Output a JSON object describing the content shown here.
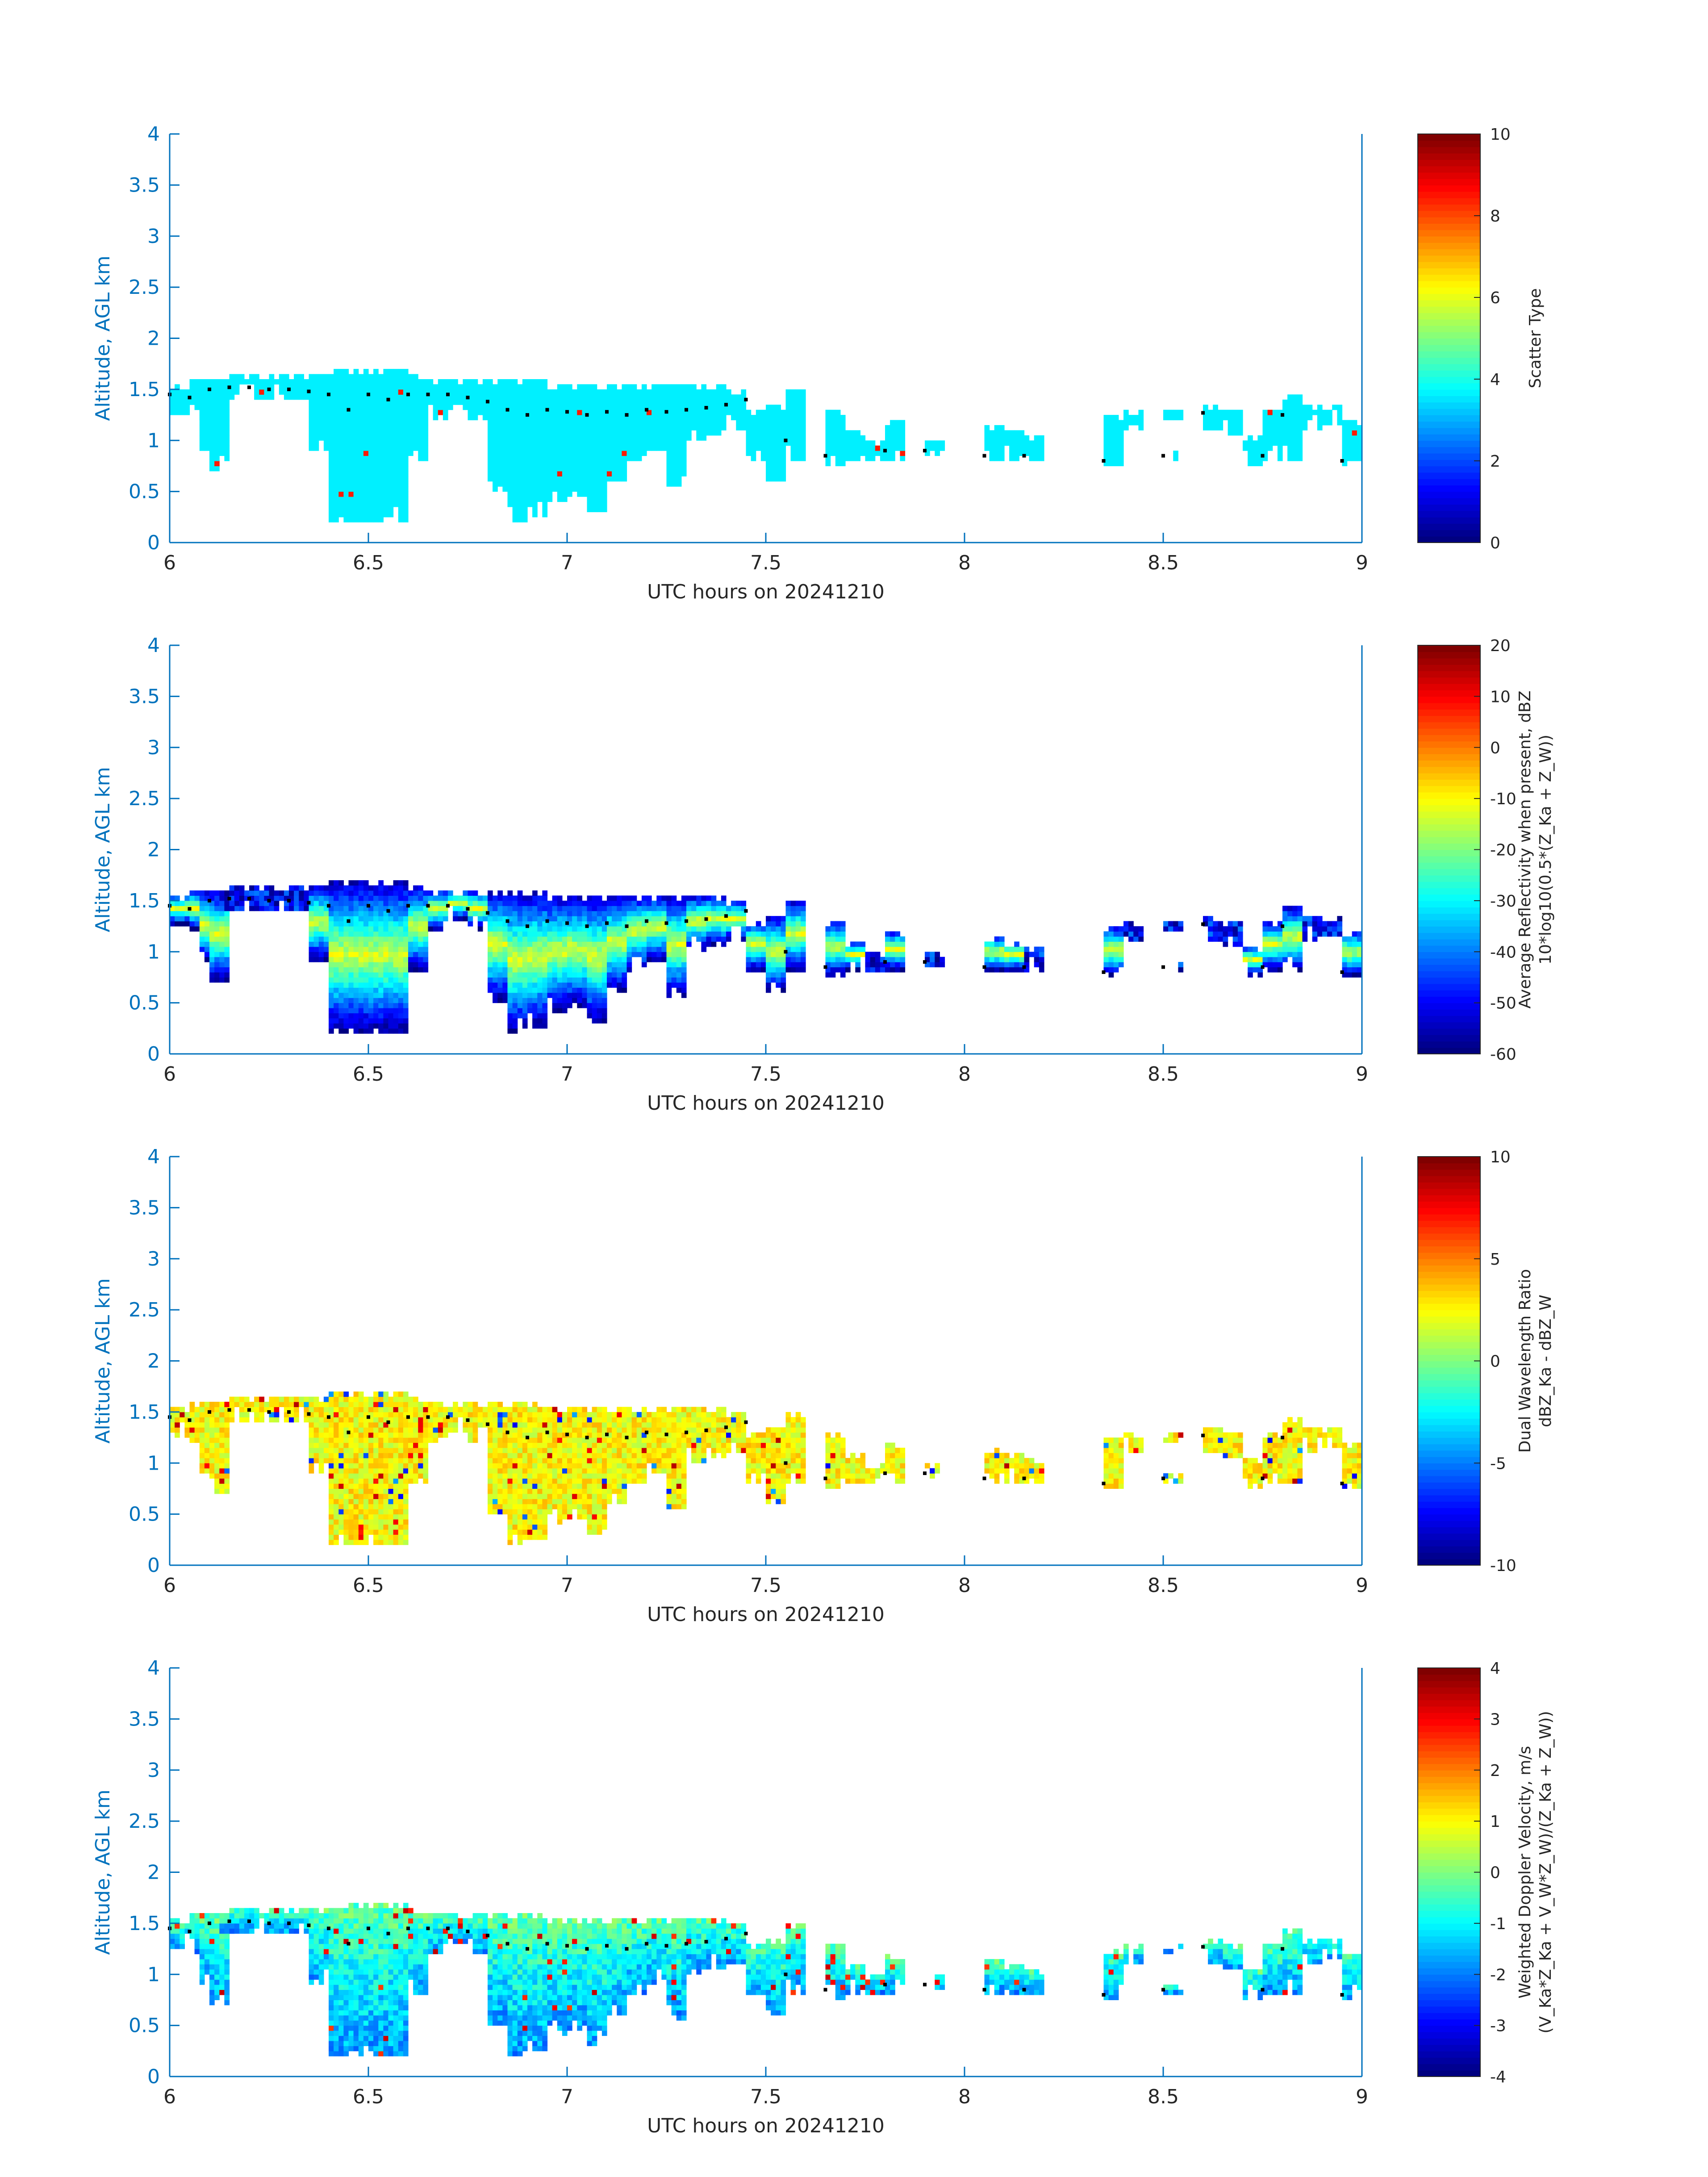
{
  "figure": {
    "colors": {
      "axis": "#0072bd",
      "text": "#262626",
      "cloud_top": "#000000"
    }
  },
  "chart_data": [
    {
      "type": "heatmap",
      "panel": "scatter-type",
      "xlabel": "UTC hours on 20241210",
      "ylabel": "Altitude, AGL km",
      "xlim": [
        6,
        9
      ],
      "ylim": [
        0,
        4
      ],
      "xticks": [
        "6",
        "6.5",
        "7",
        "7.5",
        "8",
        "8.5",
        "9"
      ],
      "yticks": [
        "0",
        "0.5",
        "1",
        "1.5",
        "2",
        "2.5",
        "3",
        "3.5",
        "4"
      ],
      "colorbar": {
        "label_lines": [
          "Scatter Type"
        ],
        "range": [
          0,
          10
        ],
        "ticks": [
          "0",
          "2",
          "4",
          "6",
          "8",
          "10"
        ],
        "colormap": "jet"
      },
      "dominant_value": 3.6,
      "notes_values": {
        "isolated_high": 8.5
      }
    },
    {
      "type": "heatmap",
      "panel": "average-reflectivity",
      "xlabel": "UTC hours on 20241210",
      "ylabel": "Altitude, AGL km",
      "xlim": [
        6,
        9
      ],
      "ylim": [
        0,
        4
      ],
      "xticks": [
        "6",
        "6.5",
        "7",
        "7.5",
        "8",
        "8.5",
        "9"
      ],
      "yticks": [
        "0",
        "0.5",
        "1",
        "1.5",
        "2",
        "2.5",
        "3",
        "3.5",
        "4"
      ],
      "colorbar": {
        "label_lines": [
          "Average Reflectivity when present, dBZ",
          "10*log10(0.5*(Z_Ka + Z_W))"
        ],
        "range": [
          -60,
          20
        ],
        "ticks": [
          "-60",
          "-50",
          "-40",
          "-30",
          "-20",
          "-10",
          "0",
          "10",
          "20"
        ],
        "colormap": "jet"
      }
    },
    {
      "type": "heatmap",
      "panel": "dual-wavelength-ratio",
      "xlabel": "UTC hours on 20241210",
      "ylabel": "Altitude, AGL km",
      "xlim": [
        6,
        9
      ],
      "ylim": [
        0,
        4
      ],
      "xticks": [
        "6",
        "6.5",
        "7",
        "7.5",
        "8",
        "8.5",
        "9"
      ],
      "yticks": [
        "0",
        "0.5",
        "1",
        "1.5",
        "2",
        "2.5",
        "3",
        "3.5",
        "4"
      ],
      "colorbar": {
        "label_lines": [
          "Dual Wavelength Ratio",
          "dBZ_Ka - dBZ_W"
        ],
        "range": [
          -10,
          10
        ],
        "ticks": [
          "-10",
          "-5",
          "0",
          "5",
          "10"
        ],
        "colormap": "jet"
      }
    },
    {
      "type": "heatmap",
      "panel": "weighted-doppler-velocity",
      "xlabel": "UTC hours on 20241210",
      "ylabel": "Altitude, AGL km",
      "xlim": [
        6,
        9
      ],
      "ylim": [
        0,
        4
      ],
      "xticks": [
        "6",
        "6.5",
        "7",
        "7.5",
        "8",
        "8.5",
        "9"
      ],
      "yticks": [
        "0",
        "0.5",
        "1",
        "1.5",
        "2",
        "2.5",
        "3",
        "3.5",
        "4"
      ],
      "colorbar": {
        "label_lines": [
          "Weighted Doppler Velocity, m/s",
          "(V_Ka*Z_Ka + V_W*Z_W)/(Z_Ka + Z_W))"
        ],
        "range": [
          -4,
          4
        ],
        "ticks": [
          "-4",
          "-3",
          "-2",
          "-1",
          "0",
          "1",
          "2",
          "3",
          "4"
        ],
        "colormap": "jet"
      }
    }
  ],
  "cloud_field": {
    "x_step_hours": 0.0125,
    "columns": [
      {
        "x": 6.0,
        "top": 1.55,
        "bot": 1.25
      },
      {
        "x": 6.05,
        "top": 1.6,
        "bot": 1.2
      },
      {
        "x": 6.075,
        "top": 1.6,
        "bot": 0.9
      },
      {
        "x": 6.1,
        "top": 1.6,
        "bot": 0.7
      },
      {
        "x": 6.125,
        "top": 1.6,
        "bot": 1.4
      },
      {
        "x": 6.15,
        "top": 1.65,
        "bot": 1.4
      },
      {
        "x": 6.2,
        "top": 1.65,
        "bot": 1.4
      },
      {
        "x": 6.25,
        "top": 1.65,
        "bot": 1.4
      },
      {
        "x": 6.3,
        "top": 1.65,
        "bot": 1.4
      },
      {
        "x": 6.35,
        "top": 1.65,
        "bot": 0.9
      },
      {
        "x": 6.4,
        "top": 1.7,
        "bot": 0.2
      },
      {
        "x": 6.45,
        "top": 1.7,
        "bot": 0.2
      },
      {
        "x": 6.5,
        "top": 1.7,
        "bot": 0.2
      },
      {
        "x": 6.55,
        "top": 1.7,
        "bot": 0.2
      },
      {
        "x": 6.6,
        "top": 1.65,
        "bot": 0.8
      },
      {
        "x": 6.65,
        "top": 1.6,
        "bot": 1.2
      },
      {
        "x": 6.7,
        "top": 1.6,
        "bot": 1.3
      },
      {
        "x": 6.75,
        "top": 1.6,
        "bot": 1.2
      },
      {
        "x": 6.8,
        "top": 1.6,
        "bot": 0.5
      },
      {
        "x": 6.85,
        "top": 1.6,
        "bot": 0.2
      },
      {
        "x": 6.9,
        "top": 1.6,
        "bot": 0.25
      },
      {
        "x": 6.95,
        "top": 1.55,
        "bot": 0.4
      },
      {
        "x": 7.0,
        "top": 1.55,
        "bot": 0.45
      },
      {
        "x": 7.05,
        "top": 1.55,
        "bot": 0.3
      },
      {
        "x": 7.1,
        "top": 1.55,
        "bot": 0.6
      },
      {
        "x": 7.15,
        "top": 1.55,
        "bot": 0.8
      },
      {
        "x": 7.2,
        "top": 1.55,
        "bot": 0.9
      },
      {
        "x": 7.25,
        "top": 1.55,
        "bot": 0.55
      },
      {
        "x": 7.3,
        "top": 1.55,
        "bot": 1.0
      },
      {
        "x": 7.35,
        "top": 1.55,
        "bot": 1.05
      },
      {
        "x": 7.4,
        "top": 1.5,
        "bot": 1.1
      },
      {
        "x": 7.45,
        "top": 1.3,
        "bot": 0.8
      },
      {
        "x": 7.5,
        "top": 1.35,
        "bot": 0.6
      },
      {
        "x": 7.55,
        "top": 1.5,
        "bot": 0.8
      },
      {
        "x": 7.65,
        "top": 1.3,
        "bot": 0.75
      },
      {
        "x": 7.7,
        "top": 1.1,
        "bot": 0.8
      },
      {
        "x": 7.75,
        "top": 1.0,
        "bot": 0.8
      },
      {
        "x": 7.8,
        "top": 1.2,
        "bot": 0.8
      },
      {
        "x": 7.9,
        "top": 1.0,
        "bot": 0.85
      },
      {
        "x": 8.05,
        "top": 1.15,
        "bot": 0.8
      },
      {
        "x": 8.1,
        "top": 1.1,
        "bot": 0.8
      },
      {
        "x": 8.15,
        "top": 1.05,
        "bot": 0.8
      },
      {
        "x": 8.35,
        "top": 1.25,
        "bot": 0.75
      },
      {
        "x": 8.4,
        "top": 1.3,
        "bot": 1.1
      },
      {
        "x": 8.5,
        "top": 1.3,
        "bot": 1.2
      },
      {
        "x": 8.5,
        "top": 0.9,
        "bot": 0.8
      },
      {
        "x": 8.6,
        "top": 1.35,
        "bot": 1.1
      },
      {
        "x": 8.65,
        "top": 1.3,
        "bot": 1.05
      },
      {
        "x": 8.7,
        "top": 1.05,
        "bot": 0.75
      },
      {
        "x": 8.75,
        "top": 1.3,
        "bot": 0.8
      },
      {
        "x": 8.8,
        "top": 1.45,
        "bot": 0.8
      },
      {
        "x": 8.85,
        "top": 1.35,
        "bot": 1.1
      },
      {
        "x": 8.9,
        "top": 1.35,
        "bot": 1.15
      },
      {
        "x": 8.95,
        "top": 1.2,
        "bot": 0.75
      },
      {
        "x": 9.0,
        "top": 1.4,
        "bot": 0.75
      }
    ],
    "cloud_top_dots": [
      [
        6.0,
        1.45
      ],
      [
        6.05,
        1.42
      ],
      [
        6.1,
        1.5
      ],
      [
        6.15,
        1.52
      ],
      [
        6.2,
        1.52
      ],
      [
        6.25,
        1.5
      ],
      [
        6.3,
        1.5
      ],
      [
        6.35,
        1.48
      ],
      [
        6.4,
        1.45
      ],
      [
        6.45,
        1.3
      ],
      [
        6.5,
        1.45
      ],
      [
        6.55,
        1.4
      ],
      [
        6.6,
        1.45
      ],
      [
        6.65,
        1.45
      ],
      [
        6.7,
        1.45
      ],
      [
        6.75,
        1.42
      ],
      [
        6.8,
        1.38
      ],
      [
        6.85,
        1.3
      ],
      [
        6.9,
        1.25
      ],
      [
        6.95,
        1.3
      ],
      [
        7.0,
        1.28
      ],
      [
        7.05,
        1.25
      ],
      [
        7.1,
        1.28
      ],
      [
        7.15,
        1.25
      ],
      [
        7.2,
        1.3
      ],
      [
        7.25,
        1.28
      ],
      [
        7.3,
        1.3
      ],
      [
        7.35,
        1.32
      ],
      [
        7.4,
        1.35
      ],
      [
        7.45,
        1.4
      ],
      [
        7.55,
        1.0
      ],
      [
        7.65,
        0.85
      ],
      [
        7.8,
        0.9
      ],
      [
        7.9,
        0.9
      ],
      [
        8.05,
        0.85
      ],
      [
        8.15,
        0.85
      ],
      [
        8.35,
        0.8
      ],
      [
        8.5,
        0.85
      ],
      [
        8.6,
        1.27
      ],
      [
        8.75,
        0.85
      ],
      [
        8.8,
        1.25
      ],
      [
        8.95,
        0.8
      ]
    ]
  }
}
